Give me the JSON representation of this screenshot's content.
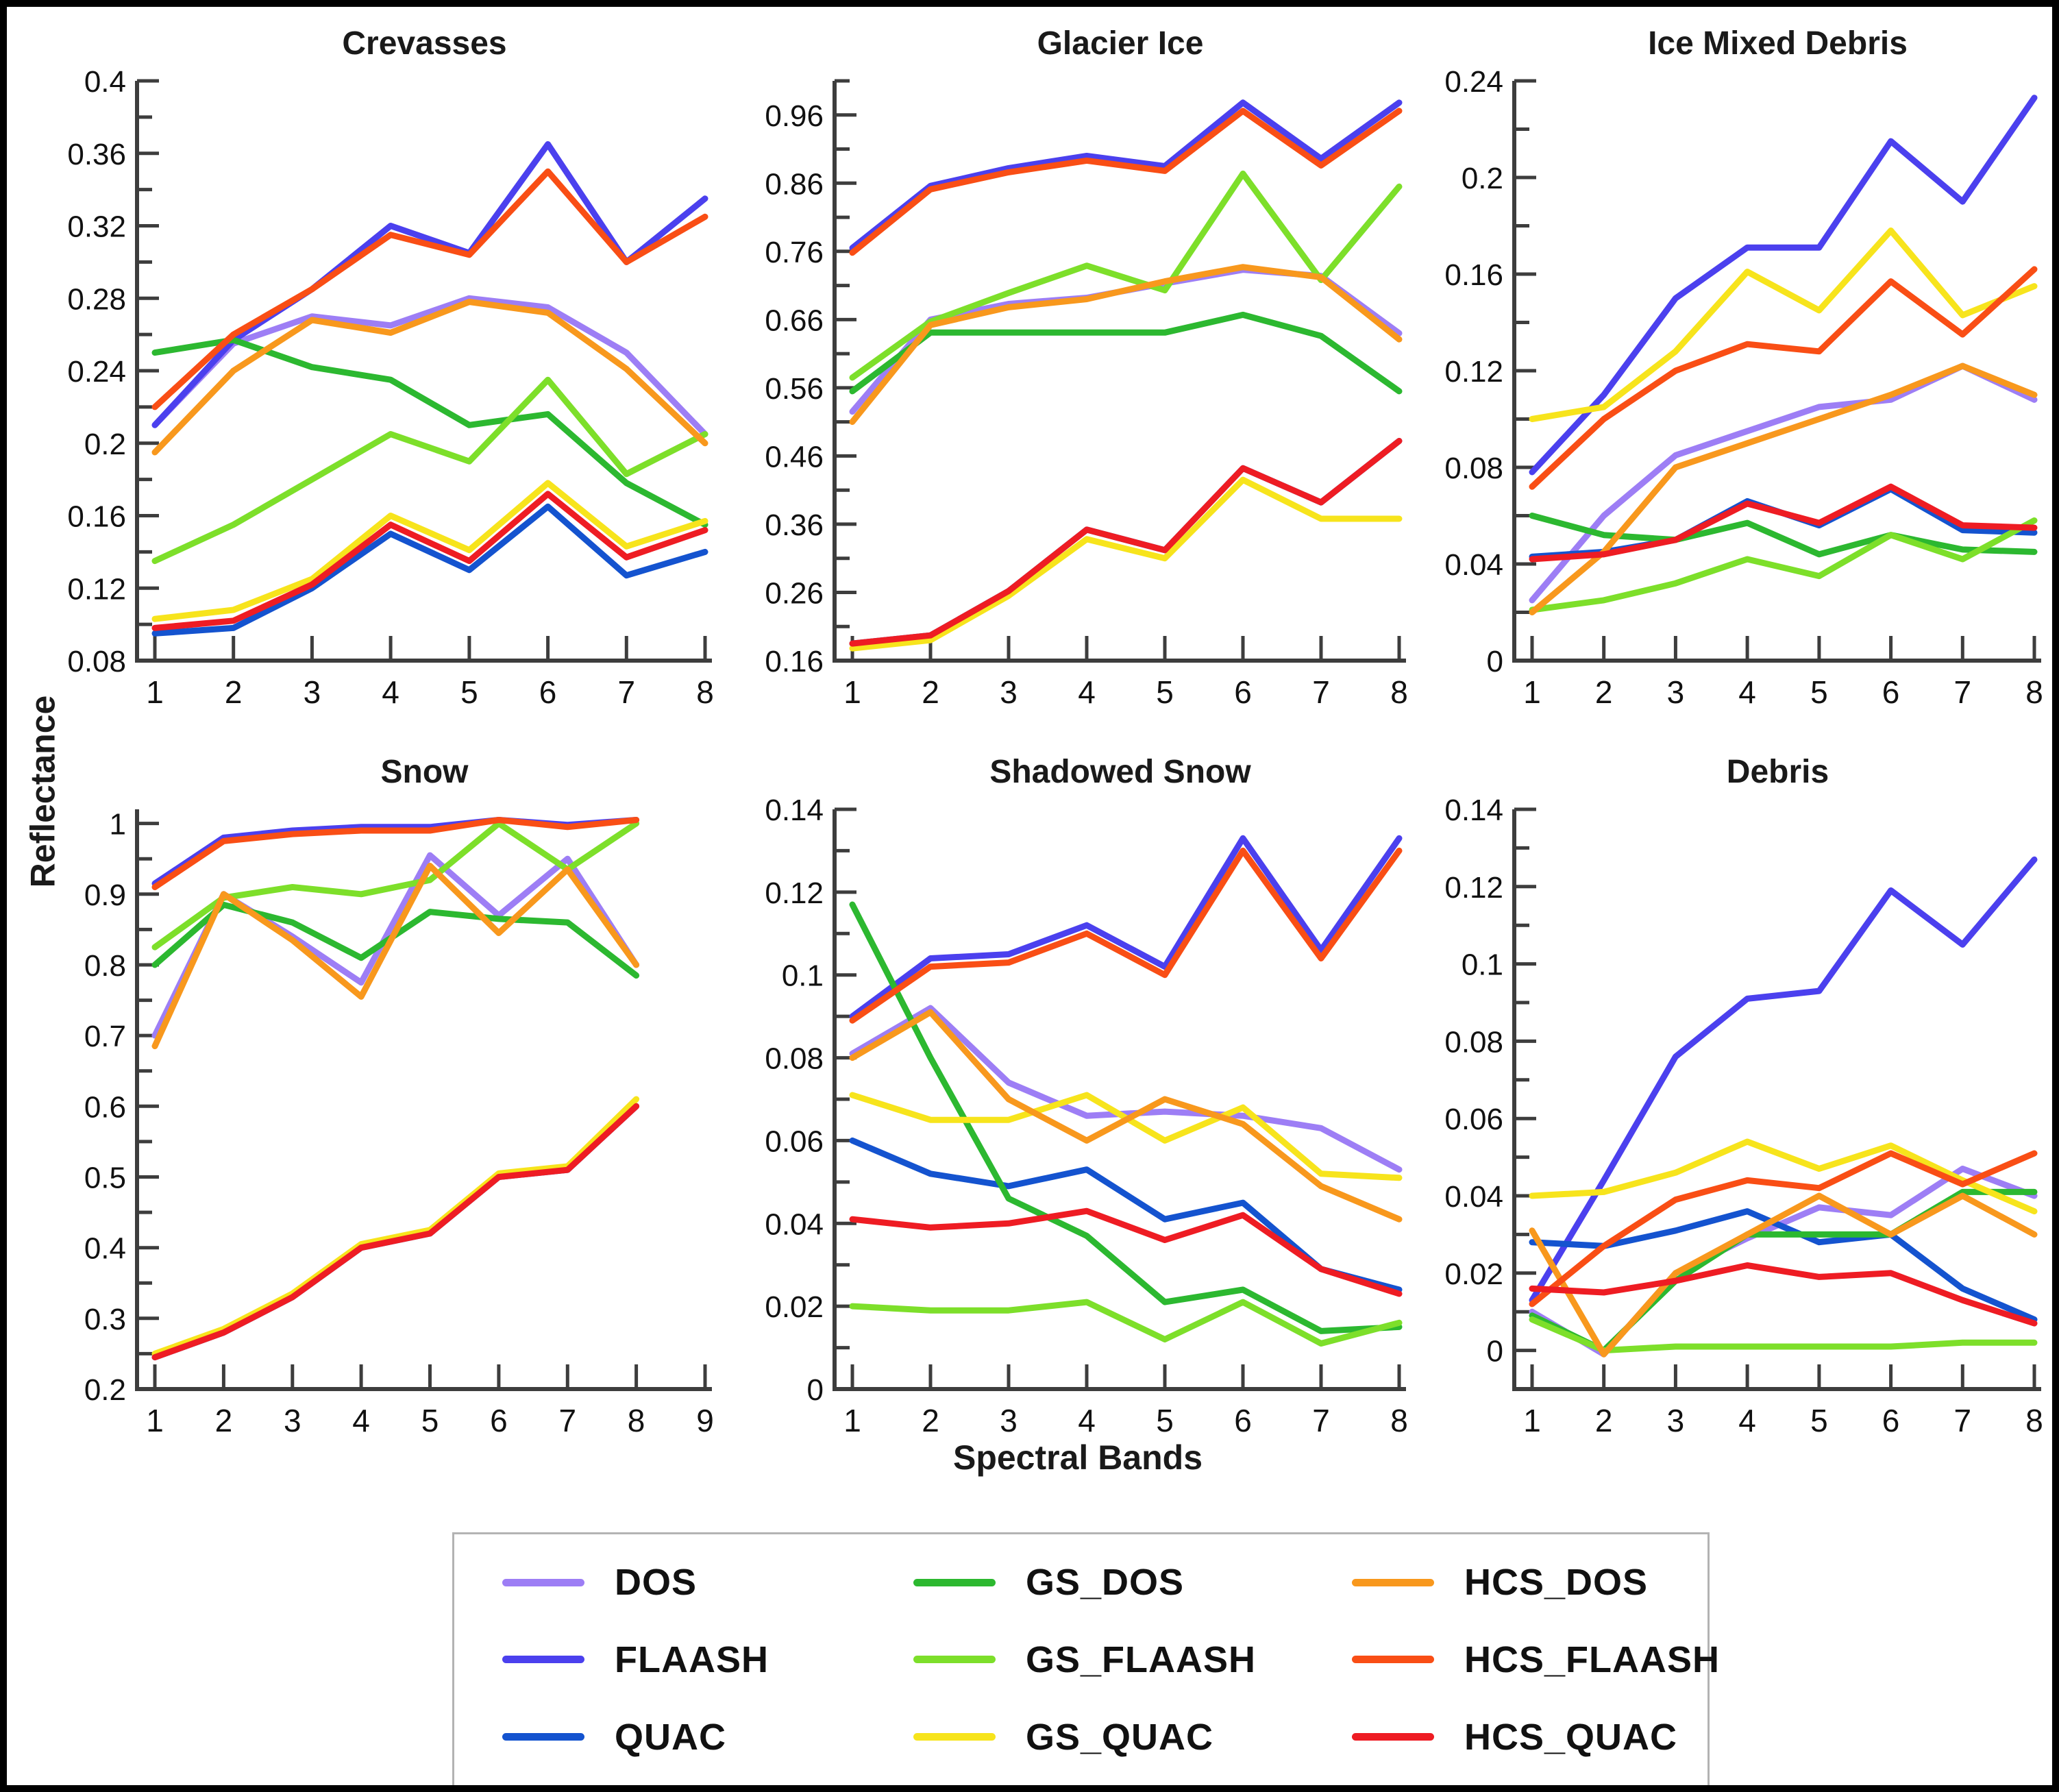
{
  "figure": {
    "ylabel": "Reflectance",
    "xlabel": "Spectral Bands"
  },
  "colors": {
    "DOS": "#9d7ef5",
    "FLAASH": "#4b40ee",
    "QUAC": "#1453cf",
    "GS_DOS": "#2cb830",
    "GS_FLAASH": "#7ddf2a",
    "GS_QUAC": "#f7e41c",
    "HCS_DOS": "#f8981d",
    "HCS_FLAASH": "#f94e15",
    "HCS_QUAC": "#ee1c23"
  },
  "axis_color": "#3d3d3d",
  "legend": {
    "items": [
      {
        "label": "DOS",
        "color_key": "DOS"
      },
      {
        "label": "FLAASH",
        "color_key": "FLAASH"
      },
      {
        "label": "QUAC",
        "color_key": "QUAC"
      },
      {
        "label": "GS_DOS",
        "color_key": "GS_DOS"
      },
      {
        "label": "GS_FLAASH",
        "color_key": "GS_FLAASH"
      },
      {
        "label": "GS_QUAC",
        "color_key": "GS_QUAC"
      },
      {
        "label": "HCS_DOS",
        "color_key": "HCS_DOS"
      },
      {
        "label": "HCS_FLAASH",
        "color_key": "HCS_FLAASH"
      },
      {
        "label": "HCS_QUAC",
        "color_key": "HCS_QUAC"
      }
    ]
  },
  "chart_data": [
    {
      "type": "line",
      "title": "Crevasses",
      "xticks": [
        1,
        2,
        3,
        4,
        5,
        6,
        7,
        8
      ],
      "ylim": [
        0.08,
        0.4
      ],
      "yticks": [
        0.08,
        0.12,
        0.16,
        0.2,
        0.24,
        0.28,
        0.32,
        0.36,
        0.4
      ],
      "ylabels": [
        "0.08",
        "0.12",
        "0.16",
        "0.2",
        "0.24",
        "0.28",
        "0.32",
        "0.36",
        "0.4"
      ],
      "series": [
        {
          "name": "DOS",
          "values": [
            0.21,
            0.255,
            0.27,
            0.265,
            0.28,
            0.275,
            0.25,
            0.205
          ]
        },
        {
          "name": "FLAASH",
          "values": [
            0.21,
            0.257,
            0.285,
            0.32,
            0.305,
            0.365,
            0.3,
            0.335
          ]
        },
        {
          "name": "QUAC",
          "values": [
            0.095,
            0.098,
            0.12,
            0.15,
            0.13,
            0.165,
            0.127,
            0.14
          ]
        },
        {
          "name": "GS_DOS",
          "values": [
            0.25,
            0.257,
            0.242,
            0.235,
            0.21,
            0.216,
            0.178,
            0.155
          ]
        },
        {
          "name": "GS_FLAASH",
          "values": [
            0.135,
            0.155,
            0.18,
            0.205,
            0.19,
            0.235,
            0.183,
            0.205
          ]
        },
        {
          "name": "GS_QUAC",
          "values": [
            0.103,
            0.108,
            0.125,
            0.16,
            0.141,
            0.178,
            0.143,
            0.157
          ]
        },
        {
          "name": "HCS_DOS",
          "values": [
            0.195,
            0.24,
            0.268,
            0.261,
            0.278,
            0.272,
            0.241,
            0.2
          ]
        },
        {
          "name": "HCS_FLAASH",
          "values": [
            0.22,
            0.26,
            0.285,
            0.315,
            0.304,
            0.35,
            0.3,
            0.325
          ]
        },
        {
          "name": "HCS_QUAC",
          "values": [
            0.098,
            0.102,
            0.122,
            0.155,
            0.135,
            0.172,
            0.137,
            0.152
          ]
        }
      ]
    },
    {
      "type": "line",
      "title": "Glacier Ice",
      "xticks": [
        1,
        2,
        3,
        4,
        5,
        6,
        7,
        8
      ],
      "ylim": [
        0.16,
        1.01
      ],
      "yticks": [
        0.16,
        0.26,
        0.36,
        0.46,
        0.56,
        0.66,
        0.76,
        0.86,
        0.96
      ],
      "ylabels": [
        "0.16",
        "0.26",
        "0.36",
        "0.46",
        "0.56",
        "0.66",
        "0.76",
        "0.86",
        "0.96"
      ],
      "series": [
        {
          "name": "DOS",
          "values": [
            0.525,
            0.66,
            0.683,
            0.692,
            0.713,
            0.733,
            0.724,
            0.64
          ]
        },
        {
          "name": "FLAASH",
          "values": [
            0.765,
            0.856,
            0.882,
            0.9,
            0.885,
            0.978,
            0.896,
            0.978
          ]
        },
        {
          "name": "QUAC",
          "values": [
            0.185,
            0.197,
            0.262,
            0.352,
            0.322,
            0.442,
            0.392,
            0.482
          ]
        },
        {
          "name": "GS_DOS",
          "values": [
            0.555,
            0.641,
            0.641,
            0.641,
            0.641,
            0.667,
            0.636,
            0.555
          ]
        },
        {
          "name": "GS_FLAASH",
          "values": [
            0.575,
            0.657,
            0.699,
            0.739,
            0.703,
            0.874,
            0.718,
            0.855
          ]
        },
        {
          "name": "GS_QUAC",
          "values": [
            0.178,
            0.19,
            0.255,
            0.338,
            0.31,
            0.425,
            0.368,
            0.368
          ]
        },
        {
          "name": "HCS_DOS",
          "values": [
            0.51,
            0.652,
            0.678,
            0.69,
            0.716,
            0.737,
            0.722,
            0.631
          ]
        },
        {
          "name": "HCS_FLAASH",
          "values": [
            0.758,
            0.851,
            0.876,
            0.893,
            0.878,
            0.966,
            0.886,
            0.966
          ]
        },
        {
          "name": "HCS_QUAC",
          "values": [
            0.185,
            0.197,
            0.262,
            0.352,
            0.322,
            0.442,
            0.392,
            0.482
          ]
        }
      ]
    },
    {
      "type": "line",
      "title": "Ice Mixed Debris",
      "xticks": [
        1,
        2,
        3,
        4,
        5,
        6,
        7,
        8
      ],
      "ylim": [
        0,
        0.24
      ],
      "yticks": [
        0,
        0.04,
        0.08,
        0.12,
        0.16,
        0.2,
        0.24
      ],
      "ylabels": [
        "0",
        "0.04",
        "0.08",
        "0.12",
        "0.16",
        "0.2",
        "0.24"
      ],
      "series": [
        {
          "name": "DOS",
          "values": [
            0.025,
            0.06,
            0.085,
            0.095,
            0.105,
            0.108,
            0.122,
            0.108
          ]
        },
        {
          "name": "FLAASH",
          "values": [
            0.078,
            0.11,
            0.15,
            0.171,
            0.171,
            0.215,
            0.19,
            0.233
          ]
        },
        {
          "name": "QUAC",
          "values": [
            0.043,
            0.045,
            0.05,
            0.066,
            0.056,
            0.071,
            0.054,
            0.053
          ]
        },
        {
          "name": "GS_DOS",
          "values": [
            0.06,
            0.052,
            0.05,
            0.057,
            0.044,
            0.052,
            0.046,
            0.045
          ]
        },
        {
          "name": "GS_FLAASH",
          "values": [
            0.021,
            0.025,
            0.032,
            0.042,
            0.035,
            0.052,
            0.042,
            0.058
          ]
        },
        {
          "name": "GS_QUAC",
          "values": [
            0.1,
            0.105,
            0.128,
            0.161,
            0.145,
            0.178,
            0.143,
            0.155
          ]
        },
        {
          "name": "HCS_DOS",
          "values": [
            0.02,
            0.045,
            0.08,
            0.09,
            0.1,
            0.11,
            0.122,
            0.11
          ]
        },
        {
          "name": "HCS_FLAASH",
          "values": [
            0.072,
            0.1,
            0.12,
            0.131,
            0.128,
            0.157,
            0.135,
            0.162
          ]
        },
        {
          "name": "HCS_QUAC",
          "values": [
            0.042,
            0.044,
            0.05,
            0.065,
            0.057,
            0.072,
            0.056,
            0.055
          ]
        }
      ]
    },
    {
      "type": "line",
      "title": "Snow",
      "xticks": [
        1,
        2,
        3,
        4,
        5,
        6,
        7,
        8,
        9
      ],
      "ylim": [
        0.2,
        1.02
      ],
      "yticks": [
        0.2,
        0.3,
        0.4,
        0.5,
        0.6,
        0.7,
        0.8,
        0.9,
        1
      ],
      "ylabels": [
        "0.2",
        "0.3",
        "0.4",
        "0.5",
        "0.6",
        "0.7",
        "0.8",
        "0.9",
        "1"
      ],
      "series": [
        {
          "name": "DOS",
          "values": [
            0.7,
            0.9,
            0.84,
            0.775,
            0.955,
            0.87,
            0.95,
            0.8
          ]
        },
        {
          "name": "FLAASH",
          "values": [
            0.915,
            0.98,
            0.99,
            0.995,
            0.995,
            1.005,
            0.998,
            1.005
          ]
        },
        {
          "name": "QUAC",
          "values": [
            0.245,
            0.28,
            0.33,
            0.4,
            0.42,
            0.5,
            0.51,
            0.6
          ]
        },
        {
          "name": "GS_DOS",
          "values": [
            0.8,
            0.885,
            0.86,
            0.81,
            0.875,
            0.865,
            0.86,
            0.785
          ]
        },
        {
          "name": "GS_FLAASH",
          "values": [
            0.825,
            0.895,
            0.91,
            0.9,
            0.92,
            1.0,
            0.935,
            1.0
          ]
        },
        {
          "name": "GS_QUAC",
          "values": [
            0.25,
            0.285,
            0.335,
            0.405,
            0.425,
            0.505,
            0.515,
            0.61
          ]
        },
        {
          "name": "HCS_DOS",
          "values": [
            0.685,
            0.9,
            0.835,
            0.755,
            0.94,
            0.845,
            0.935,
            0.8
          ]
        },
        {
          "name": "HCS_FLAASH",
          "values": [
            0.91,
            0.975,
            0.985,
            0.99,
            0.99,
            1.005,
            0.995,
            1.005
          ]
        },
        {
          "name": "HCS_QUAC",
          "values": [
            0.245,
            0.28,
            0.33,
            0.4,
            0.42,
            0.5,
            0.51,
            0.6
          ]
        }
      ]
    },
    {
      "type": "line",
      "title": "Shadowed Snow",
      "xticks": [
        1,
        2,
        3,
        4,
        5,
        6,
        7,
        8
      ],
      "ylim": [
        0,
        0.14
      ],
      "yticks": [
        0,
        0.02,
        0.04,
        0.06,
        0.08,
        0.1,
        0.12,
        0.14
      ],
      "ylabels": [
        "0",
        "0.02",
        "0.04",
        "0.06",
        "0.08",
        "0.1",
        "0.12",
        "0.14"
      ],
      "series": [
        {
          "name": "DOS",
          "values": [
            0.081,
            0.092,
            0.074,
            0.066,
            0.067,
            0.066,
            0.063,
            0.053
          ]
        },
        {
          "name": "FLAASH",
          "values": [
            0.09,
            0.104,
            0.105,
            0.112,
            0.102,
            0.133,
            0.106,
            0.133
          ]
        },
        {
          "name": "QUAC",
          "values": [
            0.06,
            0.052,
            0.049,
            0.053,
            0.041,
            0.045,
            0.029,
            0.024
          ]
        },
        {
          "name": "GS_DOS",
          "values": [
            0.117,
            0.08,
            0.046,
            0.037,
            0.021,
            0.024,
            0.014,
            0.015
          ]
        },
        {
          "name": "GS_FLAASH",
          "values": [
            0.02,
            0.019,
            0.019,
            0.021,
            0.012,
            0.021,
            0.011,
            0.016
          ]
        },
        {
          "name": "GS_QUAC",
          "values": [
            0.071,
            0.065,
            0.065,
            0.071,
            0.06,
            0.068,
            0.052,
            0.051
          ]
        },
        {
          "name": "HCS_DOS",
          "values": [
            0.08,
            0.091,
            0.07,
            0.06,
            0.07,
            0.064,
            0.049,
            0.041
          ]
        },
        {
          "name": "HCS_FLAASH",
          "values": [
            0.089,
            0.102,
            0.103,
            0.11,
            0.1,
            0.13,
            0.104,
            0.13
          ]
        },
        {
          "name": "HCS_QUAC",
          "values": [
            0.041,
            0.039,
            0.04,
            0.043,
            0.036,
            0.042,
            0.029,
            0.023
          ]
        }
      ]
    },
    {
      "type": "line",
      "title": "Debris",
      "xticks": [
        1,
        2,
        3,
        4,
        5,
        6,
        7,
        8
      ],
      "ylim": [
        -0.01,
        0.14
      ],
      "yticks": [
        0,
        0.02,
        0.04,
        0.06,
        0.08,
        0.1,
        0.12,
        0.14
      ],
      "ylabels": [
        "0",
        "0.02",
        "0.04",
        "0.06",
        "0.08",
        "0.1",
        "0.12",
        "0.14"
      ],
      "series": [
        {
          "name": "DOS",
          "values": [
            0.01,
            -0.001,
            0.02,
            0.029,
            0.037,
            0.035,
            0.047,
            0.04
          ]
        },
        {
          "name": "FLAASH",
          "values": [
            0.013,
            0.044,
            0.076,
            0.091,
            0.093,
            0.119,
            0.105,
            0.127
          ]
        },
        {
          "name": "QUAC",
          "values": [
            0.028,
            0.027,
            0.031,
            0.036,
            0.028,
            0.03,
            0.016,
            0.008
          ]
        },
        {
          "name": "GS_DOS",
          "values": [
            0.009,
            0.0,
            0.018,
            0.03,
            0.03,
            0.03,
            0.041,
            0.041
          ]
        },
        {
          "name": "GS_FLAASH",
          "values": [
            0.008,
            0.0,
            0.001,
            0.001,
            0.001,
            0.001,
            0.002,
            0.002
          ]
        },
        {
          "name": "GS_QUAC",
          "values": [
            0.04,
            0.041,
            0.046,
            0.054,
            0.047,
            0.053,
            0.044,
            0.036
          ]
        },
        {
          "name": "HCS_DOS",
          "values": [
            0.031,
            -0.001,
            0.02,
            0.03,
            0.04,
            0.03,
            0.04,
            0.03
          ]
        },
        {
          "name": "HCS_FLAASH",
          "values": [
            0.012,
            0.027,
            0.039,
            0.044,
            0.042,
            0.051,
            0.043,
            0.051
          ]
        },
        {
          "name": "HCS_QUAC",
          "values": [
            0.016,
            0.015,
            0.018,
            0.022,
            0.019,
            0.02,
            0.013,
            0.007
          ]
        }
      ]
    }
  ]
}
